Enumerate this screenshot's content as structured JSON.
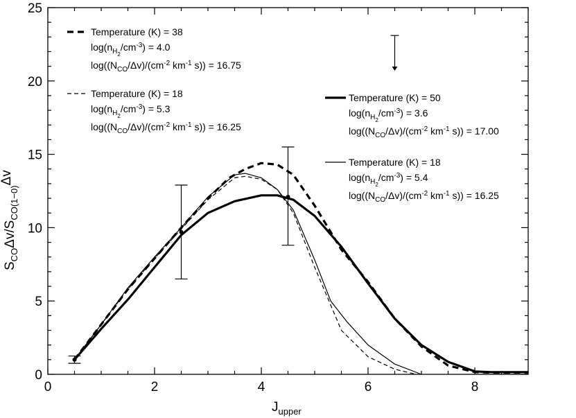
{
  "chart_data": {
    "type": "line",
    "xlabel": {
      "main": "J",
      "sub": "upper"
    },
    "ylabel": {
      "p1": "S",
      "s1": "CO",
      "p2": "Δv/S",
      "s2": "CO(1−0)",
      "p3": "Δv"
    },
    "xlim": [
      0,
      9
    ],
    "ylim": [
      0,
      25
    ],
    "xticks": [
      0,
      2,
      4,
      6,
      8
    ],
    "yticks": [
      0,
      5,
      10,
      15,
      20,
      25
    ],
    "grid": false,
    "series": [
      {
        "name": "Temperature (K) = 38",
        "style": "thick-dashed",
        "x": [
          0.5,
          1,
          1.5,
          2,
          2.5,
          3,
          3.4,
          3.7,
          4.0,
          4.3,
          4.6,
          5.0,
          5.5,
          6.0,
          6.5,
          7.0,
          7.5,
          8.0,
          8.3,
          9.0
        ],
        "y": [
          1.0,
          3.4,
          5.8,
          7.9,
          10.0,
          12.0,
          13.4,
          14.0,
          14.4,
          14.3,
          13.6,
          11.5,
          8.5,
          6.3,
          3.8,
          1.9,
          0.6,
          0.15,
          0.12,
          0.12
        ]
      },
      {
        "name": "Temperature (K) = 18",
        "style": "thin-dashed",
        "x": [
          0.5,
          1,
          1.5,
          2,
          2.5,
          3,
          3.5,
          3.7,
          4.0,
          4.3,
          4.6,
          5.0,
          5.5,
          6.0,
          6.5,
          6.9
        ],
        "y": [
          1.0,
          3.4,
          5.8,
          7.9,
          9.9,
          11.9,
          13.4,
          13.5,
          13.3,
          12.6,
          11.0,
          7.3,
          3.0,
          1.2,
          0.35,
          0.0
        ]
      },
      {
        "name": "Temperature (K) = 50",
        "style": "thick-solid",
        "x": [
          0.5,
          1,
          1.5,
          2,
          2.5,
          3,
          3.5,
          4.0,
          4.3,
          4.6,
          5.0,
          5.5,
          6.0,
          6.5,
          7.0,
          7.5,
          8.0,
          8.3,
          9.0
        ],
        "y": [
          1.0,
          3.1,
          5.1,
          7.3,
          9.5,
          11.0,
          11.8,
          12.2,
          12.2,
          11.9,
          10.8,
          8.7,
          6.2,
          3.8,
          2.0,
          0.85,
          0.2,
          0.15,
          0.15
        ]
      },
      {
        "name": "Temperature (K) = 18",
        "style": "thin-solid",
        "x": [
          0.5,
          1,
          1.5,
          2,
          2.5,
          3,
          3.5,
          3.7,
          4.0,
          4.3,
          4.6,
          5.0,
          5.3,
          5.6,
          6.0,
          6.5,
          7.0
        ],
        "y": [
          1.0,
          3.4,
          5.9,
          8.0,
          10.0,
          12.1,
          13.6,
          13.7,
          13.4,
          12.6,
          11.2,
          7.8,
          5.0,
          3.6,
          2.0,
          0.7,
          0.0
        ]
      }
    ],
    "observations": [
      {
        "x": 0.5,
        "y": 1.0,
        "ylow": 0.75,
        "yhigh": 1.25
      },
      {
        "x": 2.5,
        "y": 9.7,
        "ylow": 6.5,
        "yhigh": 12.9
      },
      {
        "x": 4.5,
        "y": 12.1,
        "ylow": 8.8,
        "yhigh": 15.5
      }
    ],
    "upper_limit": {
      "x": 6.5,
      "y": 23.1,
      "arrow_to": 20.7
    },
    "legend": [
      {
        "style": "thick-dashed",
        "temperature": "Temperature (K) = 38",
        "density": {
          "pre": "log(n",
          "sub1": "H",
          "sub2": "2",
          "post": "/cm",
          "sup": "-3",
          "end": ") = 4.0"
        },
        "column": {
          "pre": "log((N",
          "sub": "CO",
          "mid": "/Δv)/(cm",
          "sup1": "-2",
          "mid2": " km",
          "sup2": "-1",
          "end": " s)) = 16.75"
        }
      },
      {
        "style": "thin-dashed",
        "temperature": "Temperature (K) = 18",
        "density": {
          "pre": "log(n",
          "sub1": "H",
          "sub2": "2",
          "post": "/cm",
          "sup": "-3",
          "end": ") = 5.3"
        },
        "column": {
          "pre": "log((N",
          "sub": "CO",
          "mid": "/Δv)/(cm",
          "sup1": "-2",
          "mid2": " km",
          "sup2": "-1",
          "end": " s)) = 16.25"
        }
      },
      {
        "style": "thick-solid",
        "temperature": "Temperature (K) = 50",
        "density": {
          "pre": "log(n",
          "sub1": "H",
          "sub2": "2",
          "post": "/cm",
          "sup": "-3",
          "end": ") = 3.6"
        },
        "column": {
          "pre": "log((N",
          "sub": "CO",
          "mid": "/Δv)/(cm",
          "sup1": "-2",
          "mid2": " km",
          "sup2": "-1",
          "end": " s)) = 17.00"
        }
      },
      {
        "style": "thin-solid",
        "temperature": "Temperature (K) = 18",
        "density": {
          "pre": "log(n",
          "sub1": "H",
          "sub2": "2",
          "post": "/cm",
          "sup": "-3",
          "end": ") = 5.4"
        },
        "column": {
          "pre": "log((N",
          "sub": "CO",
          "mid": "/Δv)/(cm",
          "sup1": "-2",
          "mid2": " km",
          "sup2": "-1",
          "end": " s)) = 16.25"
        }
      }
    ]
  }
}
